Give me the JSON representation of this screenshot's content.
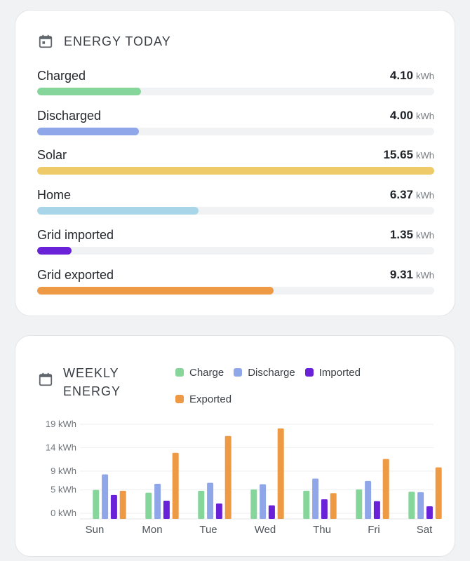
{
  "today": {
    "title": "ENERGY TODAY",
    "unit": "kWh",
    "rows": [
      {
        "label": "Charged",
        "value": "4.10",
        "fraction": 0.262,
        "color": "#86d59b"
      },
      {
        "label": "Discharged",
        "value": "4.00",
        "fraction": 0.256,
        "color": "#8fa7e8"
      },
      {
        "label": "Solar",
        "value": "15.65",
        "fraction": 1.0,
        "color": "#eecb68"
      },
      {
        "label": "Home",
        "value": "6.37",
        "fraction": 0.407,
        "color": "#a8d6e8"
      },
      {
        "label": "Grid imported",
        "value": "1.35",
        "fraction": 0.086,
        "color": "#6a22d8"
      },
      {
        "label": "Grid exported",
        "value": "9.31",
        "fraction": 0.595,
        "color": "#ee9a45"
      }
    ]
  },
  "weekly": {
    "title_line1": "WEEKLY",
    "title_line2": "ENERGY",
    "legend": [
      {
        "name": "Charge",
        "color": "#86d59b"
      },
      {
        "name": "Discharge",
        "color": "#8fa7e8"
      },
      {
        "name": "Imported",
        "color": "#6a22d8"
      },
      {
        "name": "Exported",
        "color": "#ee9a45"
      }
    ]
  },
  "chart_data": {
    "type": "bar",
    "categories": [
      "Sun",
      "Mon",
      "Tue",
      "Wed",
      "Thu",
      "Fri",
      "Sat"
    ],
    "series": [
      {
        "name": "Charge",
        "color": "#86d59b",
        "values": [
          5.0,
          4.4,
          4.8,
          5.1,
          4.8,
          5.1,
          4.6
        ]
      },
      {
        "name": "Discharge",
        "color": "#8fa7e8",
        "values": [
          8.3,
          6.3,
          6.5,
          6.2,
          7.4,
          6.9,
          4.5
        ]
      },
      {
        "name": "Imported",
        "color": "#6a22d8",
        "values": [
          3.9,
          2.7,
          2.1,
          1.7,
          3.0,
          2.6,
          1.5
        ]
      },
      {
        "name": "Exported",
        "color": "#ee9a45",
        "values": [
          4.8,
          12.9,
          16.5,
          18.1,
          4.3,
          11.6,
          9.8
        ]
      }
    ],
    "y_ticks": [
      "0 kWh",
      "5 kWh",
      "9 kWh",
      "14 kWh",
      "19 kWh"
    ],
    "y_tick_values": [
      0,
      5,
      9,
      14,
      19
    ],
    "ylim": [
      -1,
      20
    ],
    "grid": true
  }
}
